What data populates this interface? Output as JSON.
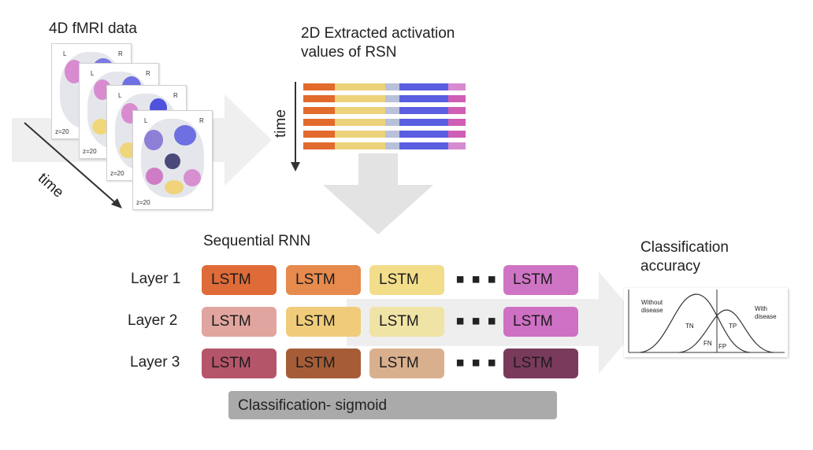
{
  "fmri": {
    "title": "4D fMRI data",
    "time_label": "time",
    "slice_left": "L",
    "slice_right": "R",
    "slice_z": "z=20"
  },
  "rsn": {
    "title_line1": "2D Extracted activation",
    "title_line2": "values of RSN",
    "time_label": "time",
    "segment_colors": [
      "#e26a2c",
      "#ecd27a",
      "#b8c0da",
      "#5a5ee0",
      "#cf5fb4",
      "#d78ad0"
    ]
  },
  "rnn": {
    "title": "Sequential RNN",
    "ellipsis": "...",
    "layers": [
      {
        "label": "Layer 1",
        "cells": [
          {
            "text": "LSTM",
            "color": "#de6b38"
          },
          {
            "text": "LSTM",
            "color": "#e68a4e"
          },
          {
            "text": "LSTM",
            "color": "#f1dd8a"
          },
          {
            "text": "LSTM",
            "color": "#cf74c4"
          }
        ]
      },
      {
        "label": "Layer 2",
        "cells": [
          {
            "text": "LSTM",
            "color": "#e0a59f"
          },
          {
            "text": "LSTM",
            "color": "#f0cc7a"
          },
          {
            "text": "LSTM",
            "color": "#f0e3a6"
          },
          {
            "text": "LSTM",
            "color": "#ce70c3"
          }
        ]
      },
      {
        "label": "Layer 3",
        "cells": [
          {
            "text": "LSTM",
            "color": "#b5556a"
          },
          {
            "text": "LSTM",
            "color": "#a65d37"
          },
          {
            "text": "LSTM",
            "color": "#d9b08e"
          },
          {
            "text": "LSTM",
            "color": "#7a3a5c"
          }
        ]
      }
    ],
    "classification_bar": "Classification- sigmoid"
  },
  "accuracy": {
    "title_line1": "Classification",
    "title_line2": "accuracy",
    "left_curve_line1": "Without",
    "left_curve_line2": "disease",
    "right_curve_line1": "With",
    "right_curve_line2": "disease",
    "tn": "TN",
    "tp": "TP",
    "fn": "FN",
    "fp": "FP"
  }
}
